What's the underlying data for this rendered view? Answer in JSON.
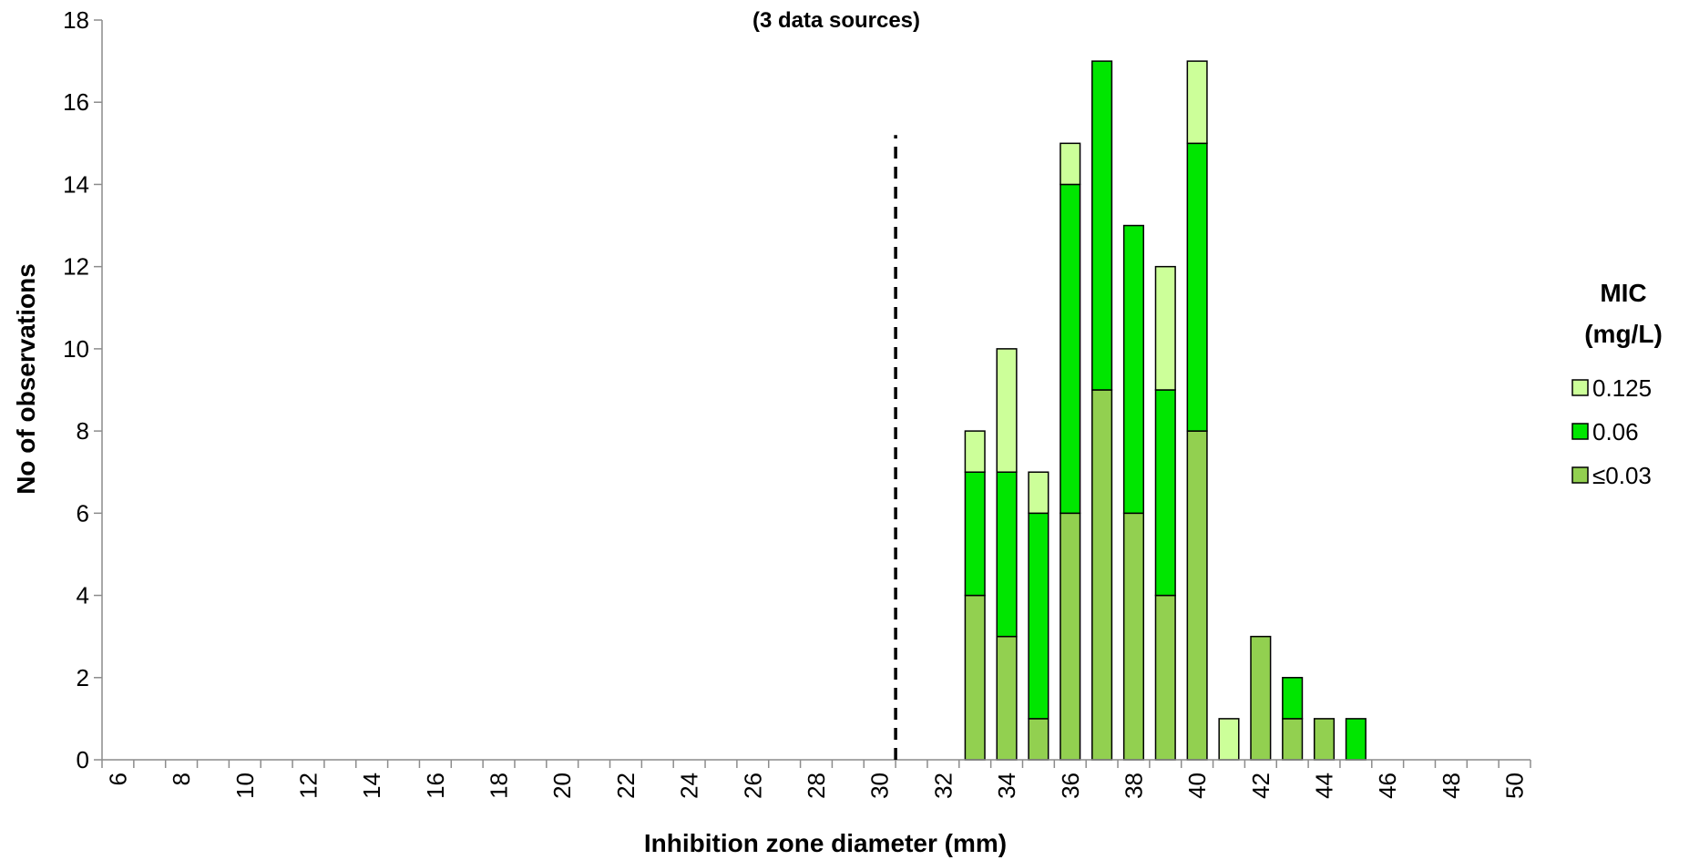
{
  "chart_data": {
    "type": "bar",
    "stacked": true,
    "subtitle": "(3 data sources)",
    "xlabel": "Inhibition zone diameter (mm)",
    "ylabel": "No of observations",
    "xlim": [
      6,
      50
    ],
    "ylim": [
      0,
      18
    ],
    "x_ticks": [
      6,
      8,
      10,
      12,
      14,
      16,
      18,
      20,
      22,
      24,
      26,
      28,
      30,
      32,
      34,
      36,
      38,
      40,
      42,
      44,
      46,
      48,
      50
    ],
    "y_ticks": [
      0,
      2,
      4,
      6,
      8,
      10,
      12,
      14,
      16,
      18
    ],
    "breakpoint_line_x": 30,
    "legend": {
      "title_line1": "MIC",
      "title_line2": "(mg/L)",
      "placement": "right"
    },
    "x": [
      33,
      34,
      35,
      36,
      37,
      38,
      39,
      40,
      41,
      42,
      43,
      44,
      45
    ],
    "series": [
      {
        "name": "≤0.03",
        "color": "#92D050",
        "values": [
          4,
          3,
          1,
          6,
          9,
          6,
          4,
          8,
          0,
          3,
          1,
          1,
          0
        ]
      },
      {
        "name": "0.06",
        "color": "#00E600",
        "values": [
          3,
          4,
          5,
          8,
          8,
          7,
          5,
          7,
          0,
          0,
          1,
          0,
          1
        ]
      },
      {
        "name": "0.125",
        "color": "#CCFF99",
        "values": [
          1,
          3,
          1,
          1,
          0,
          0,
          3,
          2,
          1,
          0,
          0,
          0,
          0
        ]
      }
    ],
    "legend_order": [
      "0.125",
      "0.06",
      "≤0.03"
    ]
  }
}
